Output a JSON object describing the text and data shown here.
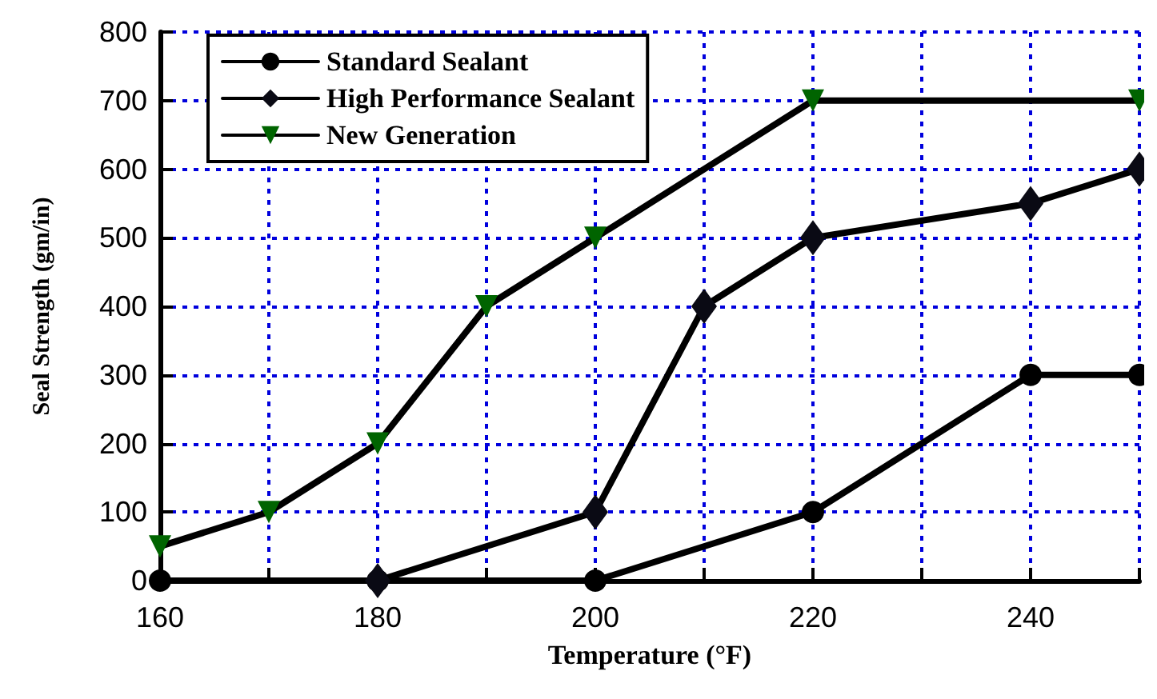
{
  "chart_data": {
    "type": "line",
    "xlabel": "Temperature (°F)",
    "ylabel": "Seal Strength (gm/in)",
    "xlim": [
      160,
      250
    ],
    "xticks": [
      160,
      {
        "value": 170,
        "label": null
      },
      180,
      {
        "value": 190,
        "label": null
      },
      200,
      {
        "value": 210,
        "label": null
      },
      220,
      {
        "value": 230,
        "label": null
      },
      240,
      {
        "value": 250,
        "label": null
      }
    ],
    "ylim": [
      0,
      800
    ],
    "yticks": [
      0,
      100,
      200,
      300,
      400,
      500,
      600,
      700,
      800
    ],
    "grid": true,
    "legend": "top left",
    "series": [
      {
        "name": "Standard Sealant",
        "color": "#000000",
        "marker": "circle",
        "x": [
          160,
          180,
          200,
          220,
          240,
          250
        ],
        "values": [
          0,
          0,
          0,
          100,
          300,
          300
        ]
      },
      {
        "name": "High Performance Sealant",
        "color": "#0a0a14",
        "marker": "diamond",
        "x": [
          180,
          200,
          210,
          220,
          240,
          250
        ],
        "values": [
          0,
          100,
          400,
          500,
          550,
          600
        ]
      },
      {
        "name": "New Generation",
        "color": "#006400",
        "marker": "triangle",
        "x": [
          160,
          170,
          180,
          190,
          200,
          220,
          250
        ],
        "values": [
          50,
          100,
          200,
          400,
          500,
          700,
          700
        ]
      }
    ]
  }
}
